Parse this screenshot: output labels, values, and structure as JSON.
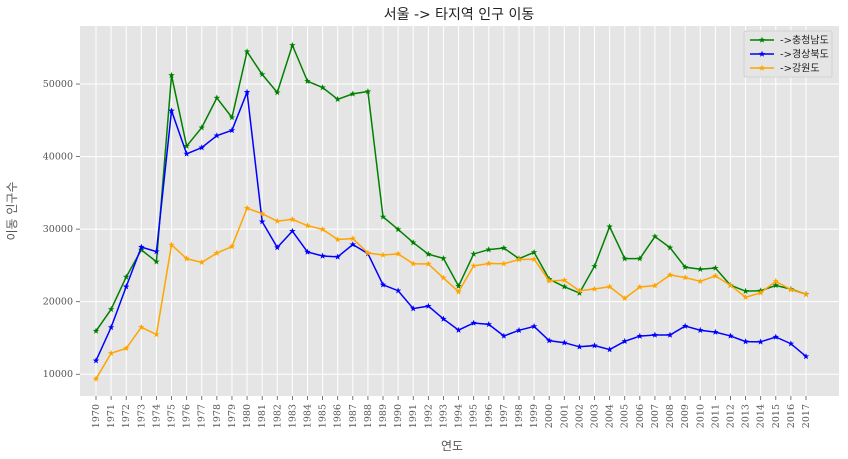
{
  "chart_data": {
    "type": "line",
    "title": "서울 -> 타지역 인구 이동",
    "xlabel": "연도",
    "ylabel": "이동 인구수",
    "x": [
      "1970",
      "1971",
      "1972",
      "1973",
      "1974",
      "1975",
      "1976",
      "1977",
      "1978",
      "1979",
      "1980",
      "1981",
      "1982",
      "1983",
      "1984",
      "1985",
      "1986",
      "1987",
      "1988",
      "1989",
      "1990",
      "1991",
      "1992",
      "1993",
      "1994",
      "1995",
      "1996",
      "1997",
      "1998",
      "1999",
      "2000",
      "2001",
      "2002",
      "2003",
      "2004",
      "2005",
      "2006",
      "2007",
      "2008",
      "2009",
      "2010",
      "2011",
      "2012",
      "2013",
      "2014",
      "2015",
      "2016",
      "2017"
    ],
    "ylim": [
      7000,
      58000
    ],
    "yticks": [
      10000,
      20000,
      30000,
      40000,
      50000
    ],
    "yticklabels": [
      "10000",
      "20000",
      "30000",
      "40000",
      "50000"
    ],
    "grid": true,
    "legend_position": "top-right",
    "series": [
      {
        "name": "->충청남도",
        "color": "#008000",
        "values": [
          15954,
          18943,
          23406,
          27139,
          25509,
          51205,
          41447,
          43993,
          48091,
          45388,
          54470,
          51327,
          48833,
          55348,
          50387,
          49514,
          47897,
          48642,
          48967,
          31693,
          29955,
          28147,
          26549,
          25961,
          22141,
          26580,
          27183,
          27394,
          25930,
          26799,
          23107,
          22070,
          21183,
          24886,
          30340,
          25940,
          25930,
          28983,
          27441,
          24761,
          24467,
          24641,
          22271,
          21448,
          21507,
          22250,
          21729,
          21034
        ]
      },
      {
        "name": "->경상북도",
        "color": "#0000ff",
        "values": [
          11868,
          16459,
          22073,
          27531,
          26902,
          46317,
          40378,
          41234,
          42888,
          43619,
          48879,
          31034,
          27469,
          29723,
          26852,
          26304,
          26179,
          27883,
          26632,
          22328,
          21510,
          19051,
          19394,
          17620,
          16082,
          17065,
          16876,
          15266,
          16052,
          16591,
          14630,
          14347,
          13782,
          13951,
          13403,
          14541,
          15258,
          15410,
          15403,
          16639,
          16068,
          15802,
          15281,
          14503,
          14468,
          15134,
          14205,
          12447
        ]
      },
      {
        "name": "->강원도",
        "color": "#ffa500",
        "values": [
          9352,
          12885,
          13561,
          16481,
          15479,
          27837,
          25927,
          25415,
          26700,
          27599,
          32891,
          32133,
          31104,
          31339,
          30478,
          29967,
          28567,
          28700,
          26709,
          26432,
          26594,
          25230,
          25203,
          23277,
          21357,
          24935,
          25268,
          25226,
          25818,
          25853,
          22874,
          22954,
          21514,
          21745,
          22064,
          20455,
          22021,
          22206,
          23682,
          23325,
          22808,
          23551,
          22269,
          20611,
          21222,
          22823,
          21662,
          21006
        ]
      }
    ]
  }
}
